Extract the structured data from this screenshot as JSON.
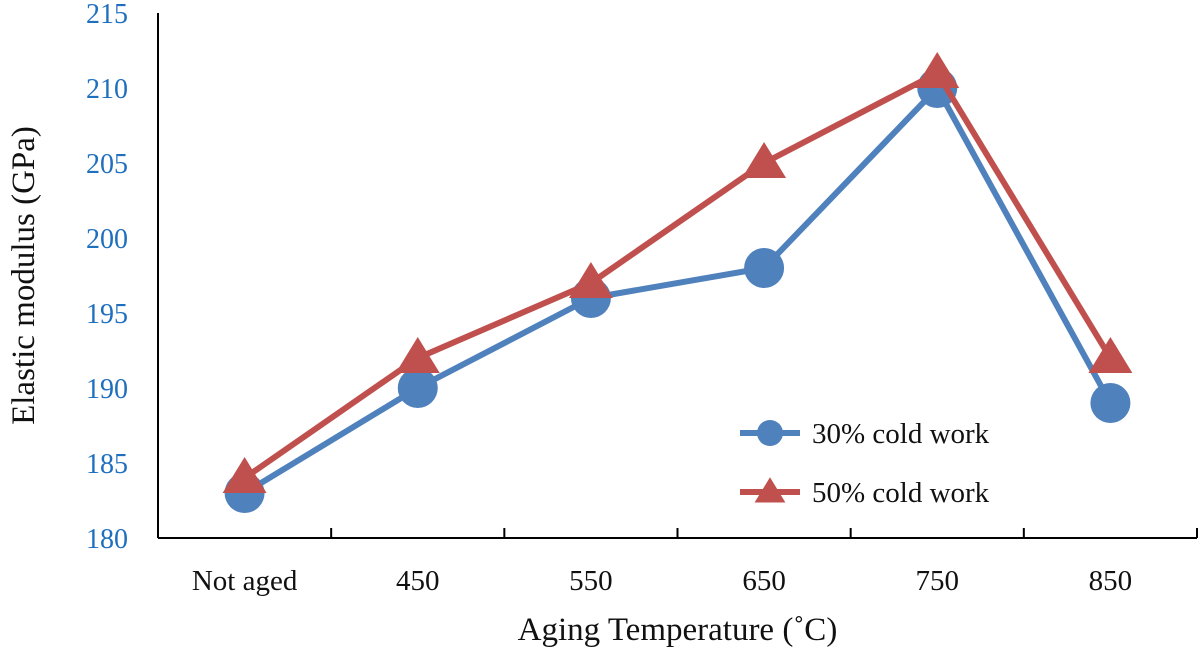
{
  "chart_data": {
    "type": "line",
    "title": "",
    "xlabel": "Aging Temperature (˚C)",
    "ylabel": "Elastic modulus (GPa)",
    "categories": [
      "Not aged",
      "450",
      "550",
      "650",
      "750",
      "850"
    ],
    "ylim": [
      180,
      215
    ],
    "yticks": [
      180,
      185,
      190,
      195,
      200,
      205,
      210,
      215
    ],
    "grid": false,
    "legend_position": "bottom-right",
    "series": [
      {
        "name": "30% cold work",
        "marker": "circle",
        "color": "#4f81bd",
        "values": [
          183,
          190,
          196,
          198,
          210,
          189
        ]
      },
      {
        "name": "50% cold work",
        "marker": "triangle",
        "color": "#c0504d",
        "values": [
          184,
          192,
          197,
          205,
          211,
          192
        ]
      }
    ]
  }
}
